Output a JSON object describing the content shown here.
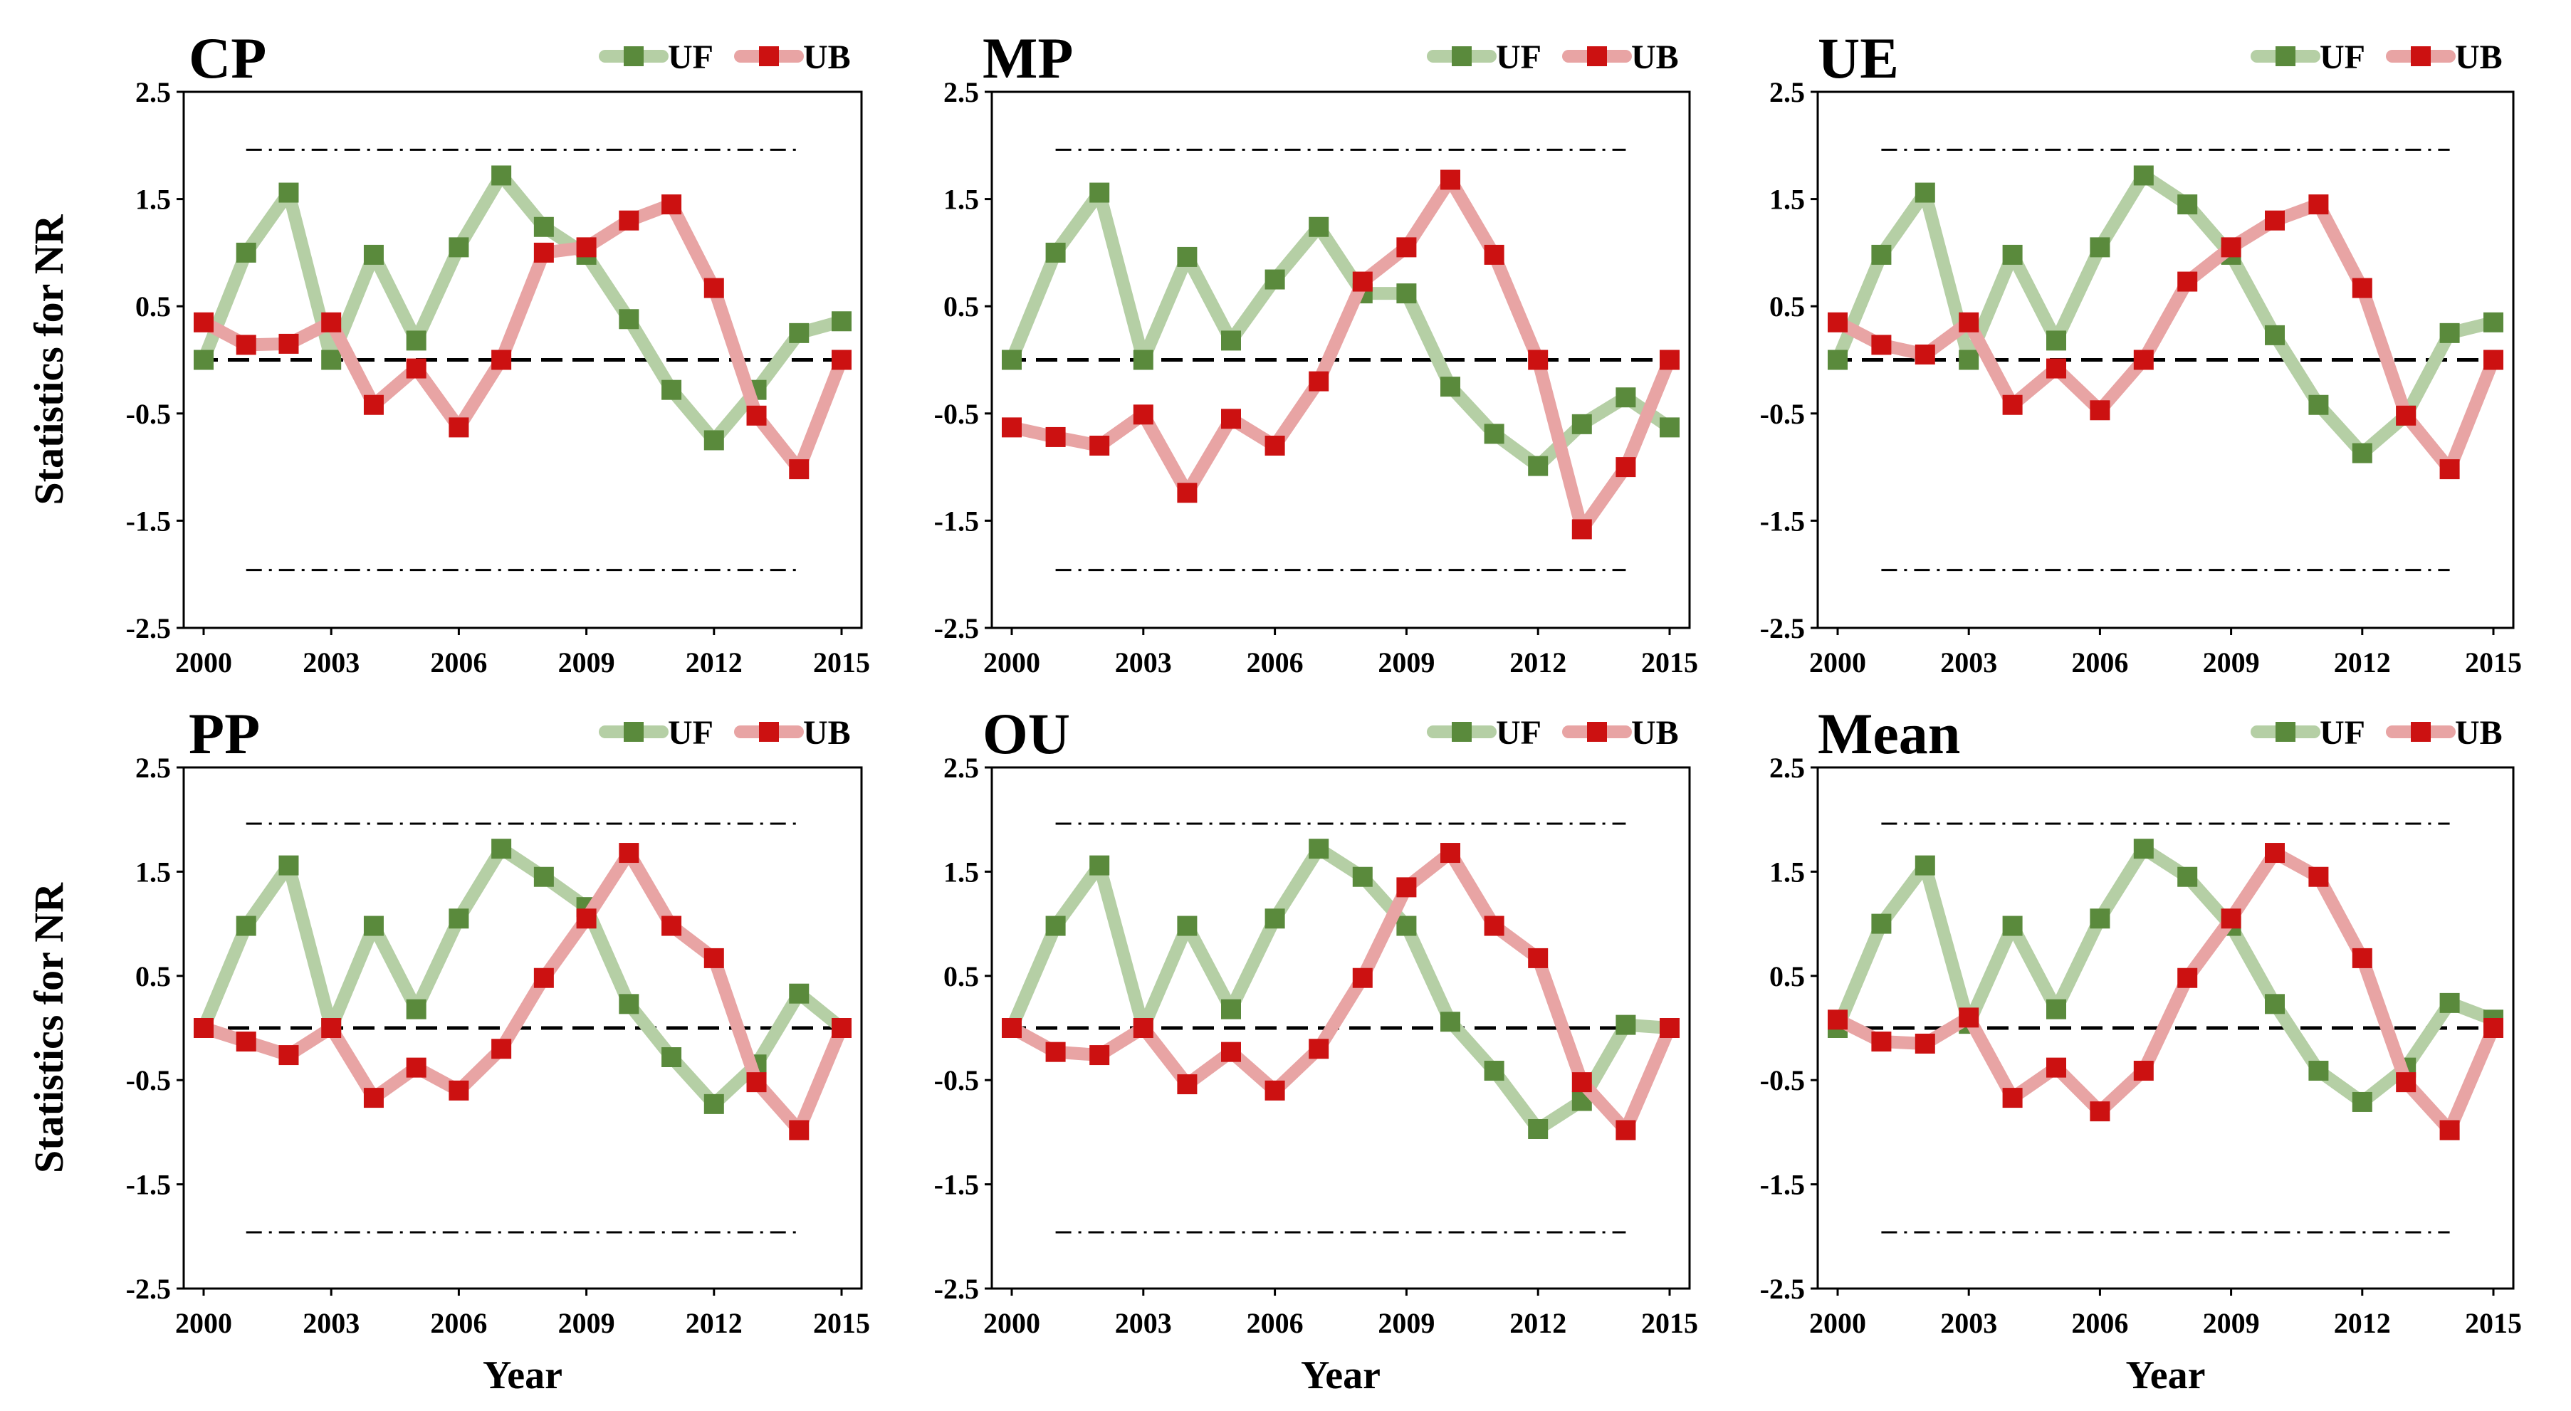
{
  "figure": {
    "ylabel": "Statistics for NR",
    "xlabel": "Year"
  },
  "colors": {
    "uf_line": "#b5cfa5",
    "uf_marker": "#5a8a3c",
    "ub_line": "#e8a4a4",
    "ub_marker": "#cc1111"
  },
  "chart_data": [
    {
      "type": "line",
      "title": "CP",
      "xlabel": "",
      "ylabel": "Statistics for NR",
      "xlim": [
        2000,
        2015
      ],
      "ylim": [
        -2.5,
        2.5
      ],
      "xticks": [
        "2000",
        "2003",
        "2006",
        "2009",
        "2012",
        "2015"
      ],
      "yticks": [
        "2.5",
        "1.5",
        "0.5",
        "-0.5",
        "-1.5",
        "-2.5"
      ],
      "legend_position": "top-right",
      "x": [
        2000,
        2001,
        2002,
        2003,
        2004,
        2005,
        2006,
        2007,
        2008,
        2009,
        2010,
        2011,
        2012,
        2013,
        2014,
        2015
      ],
      "series": [
        {
          "name": "UF",
          "values": [
            0,
            1.0,
            1.56,
            0,
            0.98,
            0.18,
            1.05,
            1.72,
            1.24,
            0.98,
            0.38,
            -0.28,
            -0.75,
            -0.28,
            0.25,
            0.36
          ]
        },
        {
          "name": "UB",
          "values": [
            0.35,
            0.14,
            0.15,
            0.35,
            -0.42,
            -0.08,
            -0.63,
            0,
            1.0,
            1.05,
            1.3,
            1.45,
            0.67,
            -0.52,
            -1.02,
            0
          ]
        }
      ],
      "reference_lines": [
        1.96,
        0,
        -1.96
      ]
    },
    {
      "type": "line",
      "title": "MP",
      "xlabel": "",
      "ylabel": "",
      "xlim": [
        2000,
        2015
      ],
      "ylim": [
        -2.5,
        2.5
      ],
      "xticks": [
        "2000",
        "2003",
        "2006",
        "2009",
        "2012",
        "2015"
      ],
      "yticks": [
        "2.5",
        "1.5",
        "0.5",
        "-0.5",
        "-1.5",
        "-2.5"
      ],
      "legend_position": "top-right",
      "x": [
        2000,
        2001,
        2002,
        2003,
        2004,
        2005,
        2006,
        2007,
        2008,
        2009,
        2010,
        2011,
        2012,
        2013,
        2014,
        2015
      ],
      "series": [
        {
          "name": "UF",
          "values": [
            0,
            1.0,
            1.56,
            0,
            0.96,
            0.18,
            0.75,
            1.24,
            0.62,
            0.62,
            -0.25,
            -0.69,
            -0.99,
            -0.6,
            -0.35,
            -0.63
          ]
        },
        {
          "name": "UB",
          "values": [
            -0.63,
            -0.72,
            -0.8,
            -0.51,
            -1.24,
            -0.55,
            -0.8,
            -0.2,
            0.73,
            1.05,
            1.68,
            0.98,
            0,
            -1.58,
            -1.0,
            0
          ]
        }
      ],
      "reference_lines": [
        1.96,
        0,
        -1.96
      ]
    },
    {
      "type": "line",
      "title": "UE",
      "xlabel": "",
      "ylabel": "",
      "xlim": [
        2000,
        2015
      ],
      "ylim": [
        -2.5,
        2.5
      ],
      "xticks": [
        "2000",
        "2003",
        "2006",
        "2009",
        "2012",
        "2015"
      ],
      "yticks": [
        "2.5",
        "1.5",
        "0.5",
        "-0.5",
        "-1.5",
        "-2.5"
      ],
      "legend_position": "top-right",
      "x": [
        2000,
        2001,
        2002,
        2003,
        2004,
        2005,
        2006,
        2007,
        2008,
        2009,
        2010,
        2011,
        2012,
        2013,
        2014,
        2015
      ],
      "series": [
        {
          "name": "UF",
          "values": [
            0,
            0.98,
            1.56,
            0,
            0.98,
            0.18,
            1.05,
            1.72,
            1.45,
            0.98,
            0.23,
            -0.42,
            -0.87,
            -0.52,
            0.25,
            0.35
          ]
        },
        {
          "name": "UB",
          "values": [
            0.35,
            0.14,
            0.05,
            0.35,
            -0.42,
            -0.08,
            -0.47,
            0,
            0.73,
            1.05,
            1.3,
            1.45,
            0.67,
            -0.52,
            -1.02,
            0
          ]
        }
      ],
      "reference_lines": [
        1.96,
        0,
        -1.96
      ]
    },
    {
      "type": "line",
      "title": "PP",
      "xlabel": "Year",
      "ylabel": "Statistics for NR",
      "xlim": [
        2000,
        2015
      ],
      "ylim": [
        -2.5,
        2.5
      ],
      "xticks": [
        "2000",
        "2003",
        "2006",
        "2009",
        "2012",
        "2015"
      ],
      "yticks": [
        "2.5",
        "1.5",
        "0.5",
        "-0.5",
        "-1.5",
        "-2.5"
      ],
      "legend_position": "top-right",
      "x": [
        2000,
        2001,
        2002,
        2003,
        2004,
        2005,
        2006,
        2007,
        2008,
        2009,
        2010,
        2011,
        2012,
        2013,
        2014,
        2015
      ],
      "series": [
        {
          "name": "UF",
          "values": [
            0,
            0.98,
            1.56,
            0,
            0.98,
            0.18,
            1.05,
            1.72,
            1.45,
            1.16,
            0.23,
            -0.28,
            -0.73,
            -0.35,
            0.33,
            0
          ]
        },
        {
          "name": "UB",
          "values": [
            0,
            -0.13,
            -0.26,
            0,
            -0.67,
            -0.38,
            -0.6,
            -0.2,
            0.48,
            1.05,
            1.68,
            0.98,
            0.67,
            -0.52,
            -0.98,
            0
          ]
        }
      ],
      "reference_lines": [
        1.96,
        0,
        -1.96
      ]
    },
    {
      "type": "line",
      "title": "OU",
      "xlabel": "Year",
      "ylabel": "",
      "xlim": [
        2000,
        2015
      ],
      "ylim": [
        -2.5,
        2.5
      ],
      "xticks": [
        "2000",
        "2003",
        "2006",
        "2009",
        "2012",
        "2015"
      ],
      "yticks": [
        "2.5",
        "1.5",
        "0.5",
        "-0.5",
        "-1.5",
        "-2.5"
      ],
      "legend_position": "top-right",
      "x": [
        2000,
        2001,
        2002,
        2003,
        2004,
        2005,
        2006,
        2007,
        2008,
        2009,
        2010,
        2011,
        2012,
        2013,
        2014,
        2015
      ],
      "series": [
        {
          "name": "UF",
          "values": [
            0,
            0.98,
            1.56,
            0,
            0.98,
            0.18,
            1.05,
            1.72,
            1.45,
            0.98,
            0.06,
            -0.41,
            -0.97,
            -0.7,
            0.03,
            0
          ]
        },
        {
          "name": "UB",
          "values": [
            0,
            -0.23,
            -0.26,
            0,
            -0.54,
            -0.23,
            -0.6,
            -0.2,
            0.48,
            1.35,
            1.68,
            0.98,
            0.67,
            -0.52,
            -0.98,
            0
          ]
        }
      ],
      "reference_lines": [
        1.96,
        0,
        -1.96
      ]
    },
    {
      "type": "line",
      "title": "Mean",
      "xlabel": "Year",
      "ylabel": "",
      "xlim": [
        2000,
        2015
      ],
      "ylim": [
        -2.5,
        2.5
      ],
      "xticks": [
        "2000",
        "2003",
        "2006",
        "2009",
        "2012",
        "2015"
      ],
      "yticks": [
        "2.5",
        "1.5",
        "0.5",
        "-0.5",
        "-1.5",
        "-2.5"
      ],
      "legend_position": "top-right",
      "x": [
        2000,
        2001,
        2002,
        2003,
        2004,
        2005,
        2006,
        2007,
        2008,
        2009,
        2010,
        2011,
        2012,
        2013,
        2014,
        2015
      ],
      "series": [
        {
          "name": "UF",
          "values": [
            0,
            1.0,
            1.56,
            0.04,
            0.98,
            0.18,
            1.05,
            1.72,
            1.45,
            0.98,
            0.23,
            -0.41,
            -0.71,
            -0.38,
            0.24,
            0.08
          ]
        },
        {
          "name": "UB",
          "values": [
            0.08,
            -0.13,
            -0.15,
            0.1,
            -0.67,
            -0.38,
            -0.8,
            -0.41,
            0.48,
            1.05,
            1.68,
            1.45,
            0.67,
            -0.52,
            -0.98,
            0
          ]
        }
      ],
      "reference_lines": [
        1.96,
        0,
        -1.96
      ]
    }
  ]
}
